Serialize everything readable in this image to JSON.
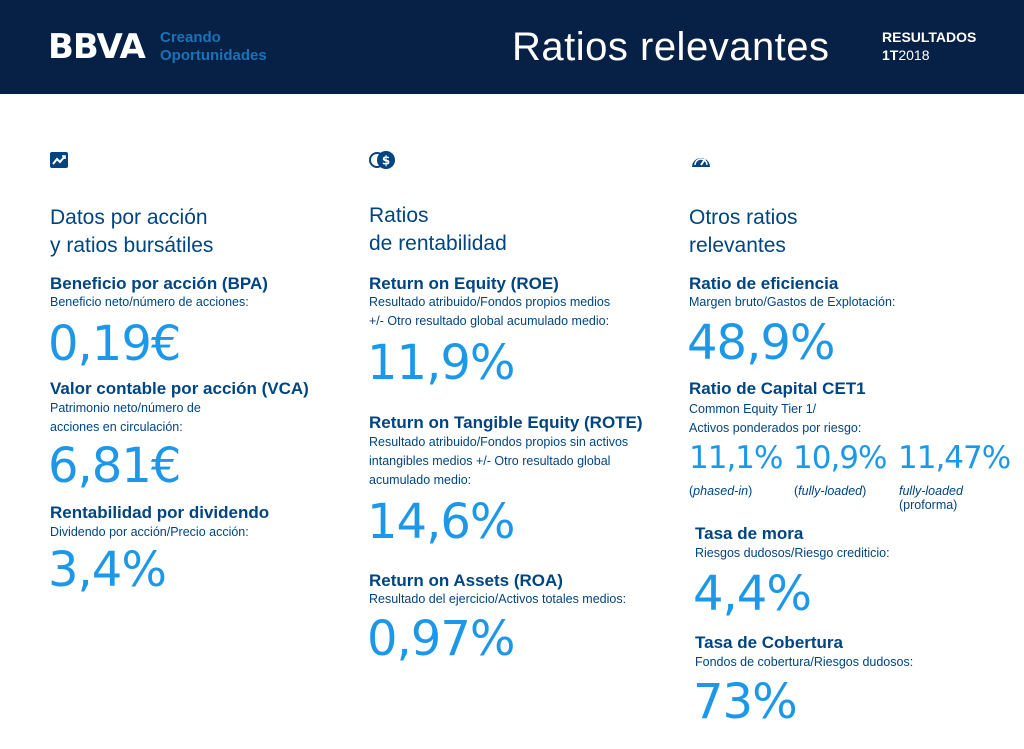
{
  "header": {
    "logo": "BBVA",
    "tagline_line1": "Creando",
    "tagline_line2": "Oportunidades",
    "title": "Ratios relevantes",
    "results_label": "RESULTADOS",
    "period_quarter": "1T",
    "period_year": "2018"
  },
  "col1": {
    "icon": "trend-chart-icon",
    "title_line1": "Datos por acción",
    "title_line2": "y ratios bursátiles",
    "metrics": [
      {
        "name": "Beneficio por acción (BPA)",
        "desc_line1": "Beneficio neto/número de acciones:",
        "desc_line2": "",
        "value": "0,19€"
      },
      {
        "name": "Valor contable por acción (VCA)",
        "desc_line1": "Patrimonio neto/número de",
        "desc_line2": "acciones en circulación:",
        "value": "6,81€"
      },
      {
        "name": "Rentabilidad por dividendo",
        "desc_line1": "Dividendo por acción/Precio acción:",
        "desc_line2": "",
        "value": "3,4%"
      }
    ]
  },
  "col2": {
    "icon": "coins-dollar-icon",
    "title_line1": "Ratios",
    "title_line2": "de rentabilidad",
    "metrics": [
      {
        "name": "Return on Equity (ROE)",
        "desc_line1": "Resultado atribuido/Fondos propios medios",
        "desc_line2": "+/- Otro resultado global acumulado medio:",
        "desc_line3": "",
        "value": "11,9%"
      },
      {
        "name": "Return on Tangible Equity (ROTE)",
        "desc_line1": "Resultado atribuido/Fondos propios sin activos",
        "desc_line2": "intangibles medios +/- Otro resultado global",
        "desc_line3": "acumulado medio:",
        "value": "14,6%"
      },
      {
        "name": "Return on Assets (ROA)",
        "desc_line1": "Resultado del ejercicio/Activos totales medios:",
        "desc_line2": "",
        "desc_line3": "",
        "value": "0,97%"
      }
    ]
  },
  "col3": {
    "icon": "speedometer-icon",
    "title_line1": "Otros ratios",
    "title_line2": "relevantes",
    "efficiency": {
      "name": "Ratio de eficiencia",
      "desc": "Margen bruto/Gastos de Explotación:",
      "value": "48,9%"
    },
    "cet1": {
      "name": "Ratio de Capital CET1",
      "desc_line1": "Common Equity Tier 1/",
      "desc_line2": "Activos ponderados por riesgo:",
      "values": [
        {
          "value": "11,1%",
          "label_open": "(",
          "label_italic": "phased-in",
          "label_close": ")",
          "label_line2": ""
        },
        {
          "value": "10,9%",
          "label_open": "(",
          "label_italic": "fully-loaded",
          "label_close": ")",
          "label_line2": ""
        },
        {
          "value": "11,47%",
          "label_open": "",
          "label_italic": "fully-loaded",
          "label_close": "",
          "label_line2": "(proforma)"
        }
      ]
    },
    "npl": {
      "name": "Tasa de mora",
      "desc": "Riesgos dudosos/Riesgo crediticio:",
      "value": "4,4%"
    },
    "coverage": {
      "name": "Tasa de  Cobertura",
      "desc": "Fondos de cobertura/Riesgos dudosos:",
      "value": "73%"
    }
  },
  "colors": {
    "header_bg": "#072146",
    "navy": "#004481",
    "accent_blue": "#1d98e8",
    "tagline_blue": "#1973b8"
  }
}
